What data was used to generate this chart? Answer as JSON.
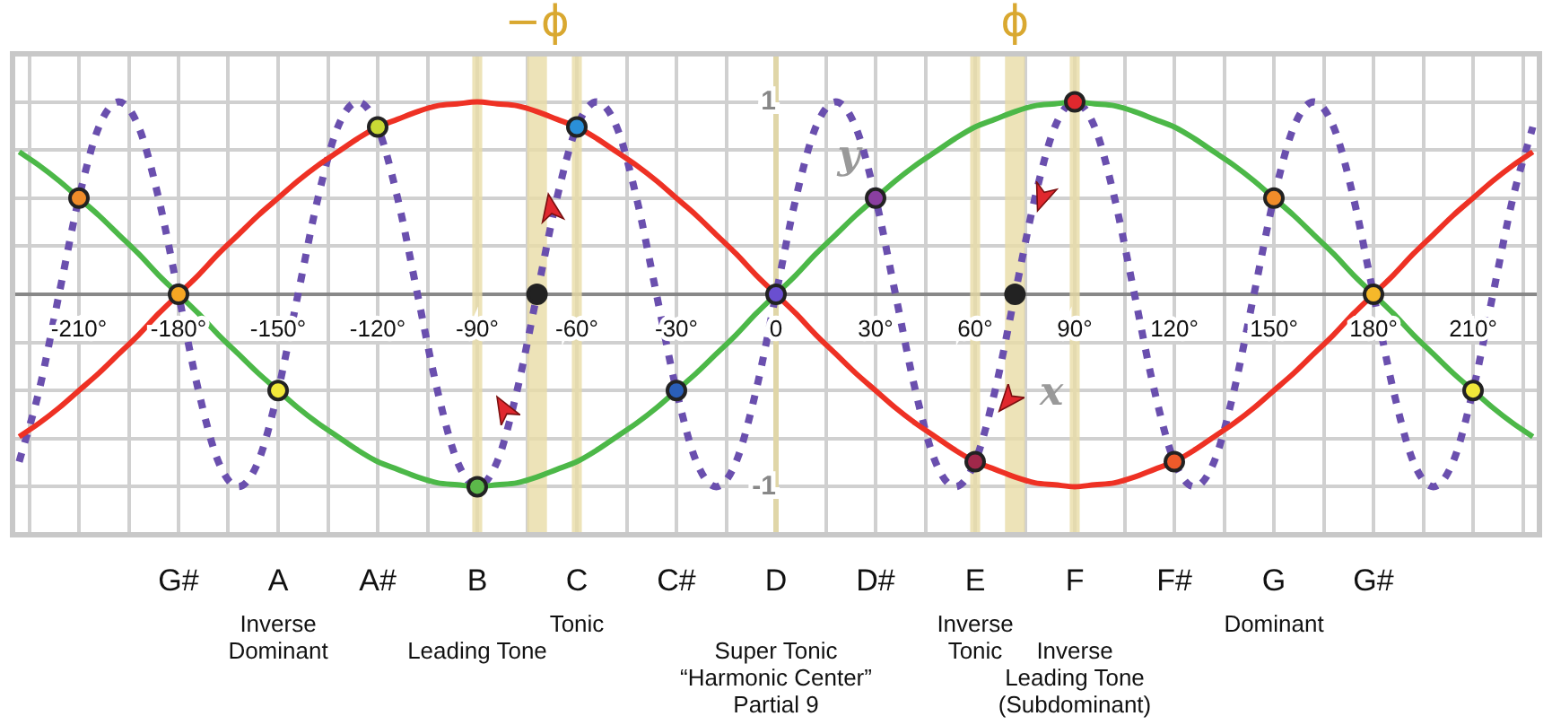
{
  "chart_data": {
    "type": "line",
    "xlabel": "x",
    "ylabel": "y",
    "x": [
      -228,
      -222,
      -216,
      -210,
      -204,
      -198,
      -192,
      -186,
      -180,
      -174,
      -168,
      -162,
      -156,
      -150,
      -144,
      -138,
      -132,
      -126,
      -120,
      -114,
      -108,
      -102,
      -96,
      -90,
      -84,
      -78,
      -72,
      -66,
      -60,
      -54,
      -48,
      -42,
      -36,
      -30,
      -24,
      -18,
      -12,
      -6,
      0,
      6,
      12,
      18,
      24,
      30,
      36,
      42,
      48,
      54,
      60,
      66,
      72,
      78,
      84,
      90,
      96,
      102,
      108,
      114,
      120,
      126,
      132,
      138,
      144,
      150,
      156,
      162,
      168,
      174,
      180,
      186,
      192,
      198,
      204,
      210,
      216,
      222,
      228
    ],
    "series": [
      {
        "color": "#4cb848",
        "line_style": "solid",
        "values": [
          0.74,
          0.67,
          0.59,
          0.5,
          0.41,
          0.31,
          0.21,
          0.1,
          0,
          -0.1,
          -0.21,
          -0.31,
          -0.41,
          -0.5,
          -0.59,
          -0.67,
          -0.74,
          -0.81,
          -0.87,
          -0.91,
          -0.95,
          -0.98,
          -0.99,
          -1,
          -0.99,
          -0.98,
          -0.95,
          -0.91,
          -0.87,
          -0.81,
          -0.74,
          -0.67,
          -0.59,
          -0.5,
          -0.41,
          -0.31,
          -0.21,
          -0.1,
          0,
          0.1,
          0.21,
          0.31,
          0.41,
          0.5,
          0.59,
          0.67,
          0.74,
          0.81,
          0.87,
          0.91,
          0.95,
          0.98,
          0.99,
          1,
          0.99,
          0.98,
          0.95,
          0.91,
          0.87,
          0.81,
          0.74,
          0.67,
          0.59,
          0.5,
          0.41,
          0.31,
          0.21,
          0.1,
          0,
          -0.1,
          -0.21,
          -0.31,
          -0.41,
          -0.5,
          -0.59,
          -0.67,
          -0.74
        ]
      },
      {
        "color": "#ee3124",
        "line_style": "solid",
        "values": [
          -0.74,
          -0.67,
          -0.59,
          -0.5,
          -0.41,
          -0.31,
          -0.21,
          -0.1,
          0,
          0.1,
          0.21,
          0.31,
          0.41,
          0.5,
          0.59,
          0.67,
          0.74,
          0.81,
          0.87,
          0.91,
          0.95,
          0.98,
          0.99,
          1,
          0.99,
          0.98,
          0.95,
          0.91,
          0.87,
          0.81,
          0.74,
          0.67,
          0.59,
          0.5,
          0.41,
          0.31,
          0.21,
          0.1,
          0,
          -0.1,
          -0.21,
          -0.31,
          -0.41,
          -0.5,
          -0.59,
          -0.67,
          -0.74,
          -0.81,
          -0.87,
          -0.91,
          -0.95,
          -0.98,
          -0.99,
          -1,
          -0.99,
          -0.98,
          -0.95,
          -0.91,
          -0.87,
          -0.81,
          -0.74,
          -0.67,
          -0.59,
          -0.5,
          -0.41,
          -0.31,
          -0.21,
          -0.1,
          0,
          0.1,
          0.21,
          0.31,
          0.41,
          0.5,
          0.59,
          0.67,
          0.74
        ]
      },
      {
        "color": "#6a4fae",
        "line_style": "dotted",
        "values": [
          -0.87,
          -0.5,
          0,
          0.5,
          0.87,
          1,
          0.87,
          0.5,
          0,
          -0.5,
          -0.87,
          -1,
          -0.87,
          -0.5,
          0,
          0.5,
          0.87,
          1,
          0.87,
          0.5,
          0,
          -0.5,
          -0.87,
          -1,
          -0.87,
          -0.5,
          0,
          0.5,
          0.87,
          1,
          0.87,
          0.5,
          0,
          -0.5,
          -0.87,
          -1,
          -0.87,
          -0.5,
          0,
          0.5,
          0.87,
          1,
          0.87,
          0.5,
          0,
          -0.5,
          -0.87,
          -1,
          -0.87,
          -0.5,
          0,
          0.5,
          0.87,
          1,
          0.87,
          0.5,
          0,
          -0.5,
          -0.87,
          -1,
          -0.87,
          -0.5,
          0,
          0.5,
          0.87,
          1,
          0.87,
          0.5,
          0,
          -0.5,
          -0.87,
          -1,
          -0.87,
          -0.5,
          0,
          0.5,
          0.87
        ]
      },
      {
        "type": "scatter",
        "marker": "circle",
        "x": [
          -210,
          -180,
          -150,
          -120,
          -90,
          -72,
          -60,
          -30,
          0,
          30,
          60,
          72,
          90,
          120,
          150,
          180,
          210
        ],
        "values": [
          0.5,
          0,
          -0.5,
          0.87,
          -1,
          0,
          0.87,
          -0.5,
          0,
          0.5,
          -0.87,
          0,
          1,
          -0.87,
          0.5,
          0,
          -0.5
        ],
        "colors": [
          "#f08c2a",
          "#f5a623",
          "#f2e83a",
          "#c9d935",
          "#5cb84a",
          "#222222",
          "#2a8fd8",
          "#2a5fb8",
          "#6a4fd0",
          "#8a3fa0",
          "#a0284a",
          "#222222",
          "#e0282e",
          "#ee5a2a",
          "#f08c2a",
          "#f5b82a",
          "#f2e83a"
        ]
      }
    ],
    "xlim": [
      -230,
      230
    ],
    "xticks": [
      {
        "value": -225,
        "label": null
      },
      {
        "value": -210,
        "label": "-210°"
      },
      {
        "value": -195,
        "label": null
      },
      {
        "value": -180,
        "label": "-180°"
      },
      {
        "value": -165,
        "label": null
      },
      {
        "value": -150,
        "label": "-150°"
      },
      {
        "value": -135,
        "label": null
      },
      {
        "value": -120,
        "label": "-120°"
      },
      {
        "value": -105,
        "label": null
      },
      {
        "value": -90,
        "label": "-90°"
      },
      {
        "value": -75,
        "label": null
      },
      {
        "value": -60,
        "label": "-60°"
      },
      {
        "value": -45,
        "label": null
      },
      {
        "value": -30,
        "label": "-30°"
      },
      {
        "value": -15,
        "label": null
      },
      0,
      {
        "value": 15,
        "label": null
      },
      {
        "value": 30,
        "label": "30°"
      },
      {
        "value": 45,
        "label": null
      },
      {
        "value": 60,
        "label": "60°"
      },
      {
        "value": 75,
        "label": null
      },
      {
        "value": 90,
        "label": "90°"
      },
      {
        "value": 105,
        "label": null
      },
      {
        "value": 120,
        "label": "120°"
      },
      {
        "value": 135,
        "label": null
      },
      {
        "value": 150,
        "label": "150°"
      },
      {
        "value": 165,
        "label": null
      },
      {
        "value": 180,
        "label": "180°"
      },
      {
        "value": 195,
        "label": null
      },
      {
        "value": 210,
        "label": "210°"
      },
      {
        "value": 225,
        "label": null
      }
    ],
    "ylim": [
      -1.25,
      1.25
    ],
    "yticks": [
      {
        "value": -1.25,
        "label": null
      },
      -1,
      {
        "value": -0.75,
        "label": null
      },
      {
        "value": -0.5,
        "label": null
      },
      {
        "value": -0.25,
        "label": null
      },
      {
        "value": 0,
        "label": null
      },
      {
        "value": 0.25,
        "label": null
      },
      {
        "value": 0.5,
        "label": null
      },
      {
        "value": 0.75,
        "label": null
      },
      1,
      {
        "value": 1.25,
        "label": null
      }
    ],
    "bands": [
      {
        "axis": "x",
        "from": -91.5,
        "to": -88.5,
        "color": "#e9dca6"
      },
      {
        "axis": "x",
        "from": -75,
        "to": -69,
        "color": "#e9dca6",
        "label": "−ϕ"
      },
      {
        "axis": "x",
        "from": -61.5,
        "to": -58.5,
        "color": "#e9dca6"
      },
      {
        "axis": "x",
        "from": 58.5,
        "to": 61.5,
        "color": "#e9dca6"
      },
      {
        "axis": "x",
        "from": 69,
        "to": 75,
        "color": "#e9dca6",
        "label": "ϕ"
      },
      {
        "axis": "x",
        "from": 88.5,
        "to": 91.5,
        "color": "#e9dca6"
      }
    ],
    "annotations": [
      "G#",
      "A\nInverse\nDominant",
      "A#",
      "B\nLeading Tone",
      "C\nTonic",
      "C#",
      "D\nSuper Tonic\n“Harmonic Center”\nPartial 9",
      "D#",
      "E\nInverse\nTonic",
      "F\nInverse\nLeading Tone\n(Subdominant)",
      "F#",
      "G\nDominant",
      "G#"
    ],
    "grid": true,
    "legend": false
  }
}
